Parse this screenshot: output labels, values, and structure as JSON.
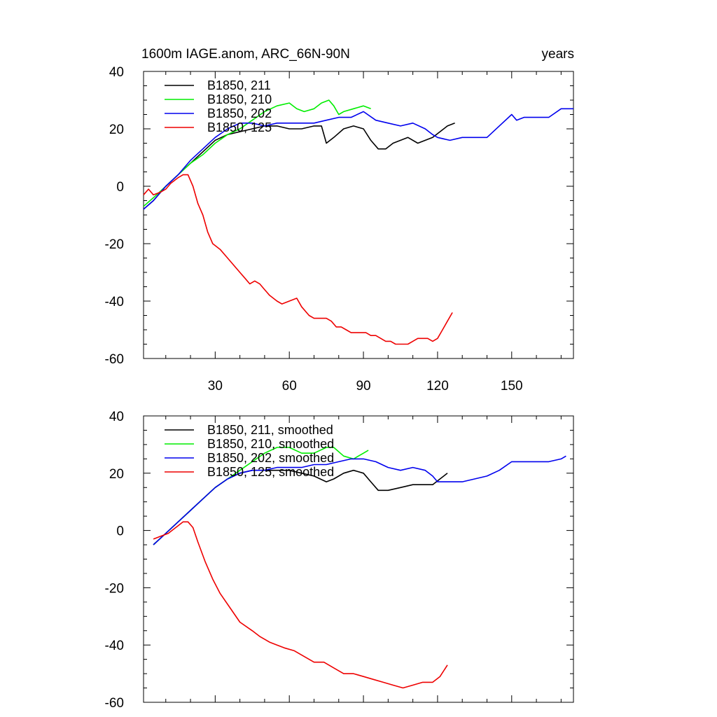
{
  "figure": {
    "title_left": "1600m IAGE.anom, ARC_66N-90N",
    "title_right": "years"
  },
  "chart_data": [
    {
      "type": "line",
      "title": "1600m IAGE.anom, ARC_66N-90N",
      "units_label": "years",
      "xlim": [
        1,
        175
      ],
      "ylim": [
        -60,
        40
      ],
      "x_ticks": [
        30,
        60,
        90,
        120,
        150
      ],
      "y_ticks": [
        -60,
        -40,
        -20,
        0,
        20,
        40
      ],
      "grid": false,
      "legend_position": "top-left",
      "series": [
        {
          "name": "B1850, 211",
          "color": "#000000",
          "x": [
            1,
            5,
            10,
            15,
            20,
            25,
            30,
            35,
            40,
            45,
            50,
            55,
            60,
            65,
            70,
            73,
            75,
            78,
            82,
            86,
            90,
            93,
            96,
            99,
            102,
            105,
            108,
            112,
            115,
            118,
            121,
            124,
            127
          ],
          "y": [
            -8,
            -5,
            0,
            4,
            8,
            12,
            16,
            18,
            19,
            20,
            21,
            21,
            20,
            20,
            21,
            21,
            15,
            17,
            20,
            21,
            20,
            16,
            13,
            13,
            15,
            16,
            17,
            15,
            16,
            17,
            19,
            21,
            22
          ]
        },
        {
          "name": "B1850, 210",
          "color": "#00ee00",
          "x": [
            1,
            5,
            10,
            15,
            20,
            25,
            30,
            35,
            40,
            45,
            50,
            55,
            60,
            63,
            66,
            70,
            73,
            76,
            78,
            80,
            82,
            86,
            90,
            93
          ],
          "y": [
            -7,
            -4,
            0,
            4,
            8,
            11,
            15,
            18,
            20,
            23,
            26,
            28,
            29,
            27,
            26,
            27,
            29,
            30,
            28,
            25,
            26,
            27,
            28,
            27
          ]
        },
        {
          "name": "B1850, 202",
          "color": "#0000ee",
          "x": [
            1,
            5,
            10,
            15,
            20,
            25,
            30,
            35,
            40,
            45,
            50,
            55,
            60,
            65,
            70,
            75,
            80,
            85,
            90,
            95,
            100,
            105,
            110,
            115,
            118,
            120,
            125,
            130,
            135,
            140,
            145,
            150,
            152,
            155,
            160,
            165,
            170,
            175
          ],
          "y": [
            -8,
            -5,
            0,
            4,
            9,
            13,
            17,
            20,
            22,
            22,
            21,
            22,
            22,
            22,
            22,
            23,
            24,
            24,
            26,
            23,
            22,
            21,
            22,
            20,
            18,
            17,
            16,
            17,
            17,
            17,
            21,
            25,
            23,
            24,
            24,
            24,
            27,
            27
          ]
        },
        {
          "name": "B1850, 125",
          "color": "#ee0000",
          "x": [
            1,
            3,
            5,
            8,
            10,
            12,
            15,
            17,
            19,
            21,
            23,
            25,
            27,
            29,
            32,
            35,
            40,
            42,
            44,
            46,
            48,
            50,
            52,
            55,
            57,
            60,
            63,
            65,
            68,
            70,
            72,
            75,
            77,
            79,
            81,
            83,
            85,
            87,
            89,
            91,
            93,
            95,
            97,
            99,
            101,
            103,
            106,
            108,
            110,
            112,
            114,
            116,
            118,
            120,
            122,
            124,
            126
          ],
          "y": [
            -3,
            -1,
            -3,
            -2,
            -1,
            1,
            3,
            4,
            4,
            0,
            -6,
            -10,
            -16,
            -20,
            -22,
            -25,
            -30,
            -32,
            -34,
            -33,
            -34,
            -36,
            -38,
            -40,
            -41,
            -40,
            -39,
            -42,
            -45,
            -46,
            -46,
            -46,
            -47,
            -49,
            -49,
            -50,
            -51,
            -51,
            -51,
            -51,
            -52,
            -52,
            -53,
            -54,
            -54,
            -55,
            -55,
            -55,
            -54,
            -53,
            -53,
            -53,
            -54,
            -53,
            -50,
            -47,
            -44
          ]
        }
      ]
    },
    {
      "type": "line",
      "xlim": [
        1,
        175
      ],
      "ylim": [
        -60,
        40
      ],
      "x_ticks": [
        30,
        60,
        90,
        120,
        150
      ],
      "y_ticks": [
        -60,
        -40,
        -20,
        0,
        20,
        40
      ],
      "grid": false,
      "legend_position": "top-left",
      "series": [
        {
          "name": "B1850, 211, smoothed",
          "color": "#000000",
          "x": [
            5,
            10,
            15,
            20,
            25,
            30,
            35,
            40,
            45,
            50,
            55,
            60,
            65,
            70,
            75,
            78,
            82,
            86,
            90,
            93,
            96,
            100,
            105,
            110,
            115,
            118,
            121,
            124
          ],
          "y": [
            -5,
            -1,
            3,
            7,
            11,
            15,
            18,
            20,
            21,
            21,
            21,
            21,
            20,
            19,
            17,
            18,
            20,
            21,
            20,
            17,
            14,
            14,
            15,
            16,
            16,
            16,
            18,
            20
          ]
        },
        {
          "name": "B1850, 210, smoothed",
          "color": "#00ee00",
          "x": [
            5,
            10,
            15,
            20,
            25,
            30,
            35,
            40,
            45,
            50,
            55,
            60,
            65,
            70,
            75,
            78,
            82,
            86,
            90,
            92
          ],
          "y": [
            -5,
            -1,
            3,
            7,
            11,
            15,
            18,
            21,
            24,
            27,
            29,
            29,
            27,
            27,
            29,
            29,
            26,
            25,
            27,
            28
          ]
        },
        {
          "name": "B1850, 202, smoothed",
          "color": "#0000ee",
          "x": [
            5,
            10,
            15,
            20,
            25,
            30,
            35,
            40,
            45,
            50,
            55,
            60,
            65,
            70,
            75,
            80,
            85,
            90,
            95,
            100,
            105,
            110,
            115,
            118,
            120,
            125,
            130,
            135,
            140,
            145,
            150,
            155,
            160,
            165,
            170,
            172
          ],
          "y": [
            -5,
            -1,
            3,
            7,
            11,
            15,
            18,
            20,
            21,
            21,
            22,
            22,
            22,
            23,
            23,
            24,
            25,
            25,
            24,
            22,
            21,
            22,
            21,
            19,
            17,
            17,
            17,
            18,
            19,
            21,
            24,
            24,
            24,
            24,
            25,
            26
          ]
        },
        {
          "name": "B1850, 125, smoothed",
          "color": "#ee0000",
          "x": [
            5,
            8,
            11,
            14,
            17,
            19,
            21,
            23,
            26,
            29,
            32,
            36,
            40,
            45,
            48,
            52,
            55,
            58,
            62,
            66,
            70,
            74,
            78,
            82,
            86,
            90,
            94,
            98,
            102,
            106,
            110,
            114,
            118,
            121,
            124
          ],
          "y": [
            -3,
            -2,
            -1,
            1,
            3,
            3,
            1,
            -4,
            -11,
            -17,
            -22,
            -27,
            -32,
            -35,
            -37,
            -39,
            -40,
            -41,
            -42,
            -44,
            -46,
            -46,
            -48,
            -50,
            -50,
            -51,
            -52,
            -53,
            -54,
            -55,
            -54,
            -53,
            -53,
            -51,
            -47
          ]
        }
      ]
    }
  ]
}
